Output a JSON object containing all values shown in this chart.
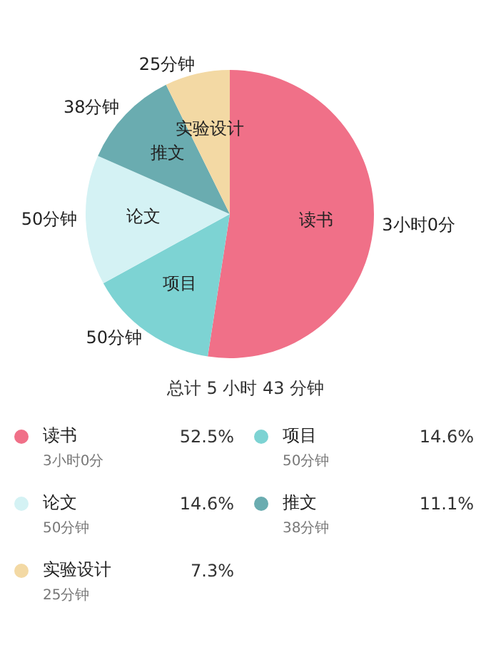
{
  "chart_data": {
    "type": "pie",
    "title": "总计 5 小时 43 分钟",
    "categories": [
      "读书",
      "项目",
      "论文",
      "推文",
      "实验设计"
    ],
    "values": [
      52.5,
      14.6,
      14.6,
      11.1,
      7.3
    ],
    "value_labels": [
      "52.5%",
      "14.6%",
      "14.6%",
      "11.1%",
      "7.3%"
    ],
    "annotations": [
      "3小时0分",
      "50分钟",
      "50分钟",
      "38分钟",
      "25分钟"
    ],
    "colors": [
      "#f07088",
      "#7dd3d3",
      "#d4f2f4",
      "#6aacb0",
      "#f3d9a4"
    ],
    "legend": "bottom"
  }
}
